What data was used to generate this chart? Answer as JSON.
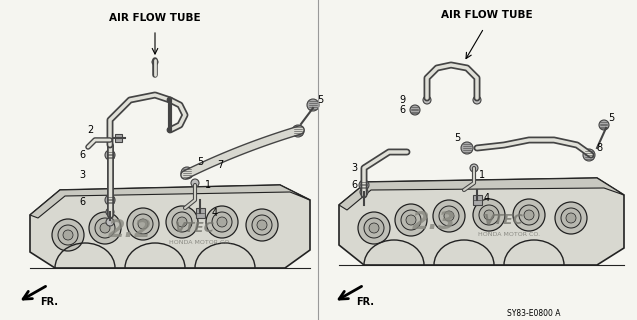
{
  "bg_color": "#f5f5f0",
  "left_label": "AIR FLOW TUBE",
  "right_label": "AIR FLOW TUBE",
  "diagram_code": "SY83-E0800 A",
  "gray": "#444444",
  "light_gray": "#999999",
  "dark": "#222222"
}
